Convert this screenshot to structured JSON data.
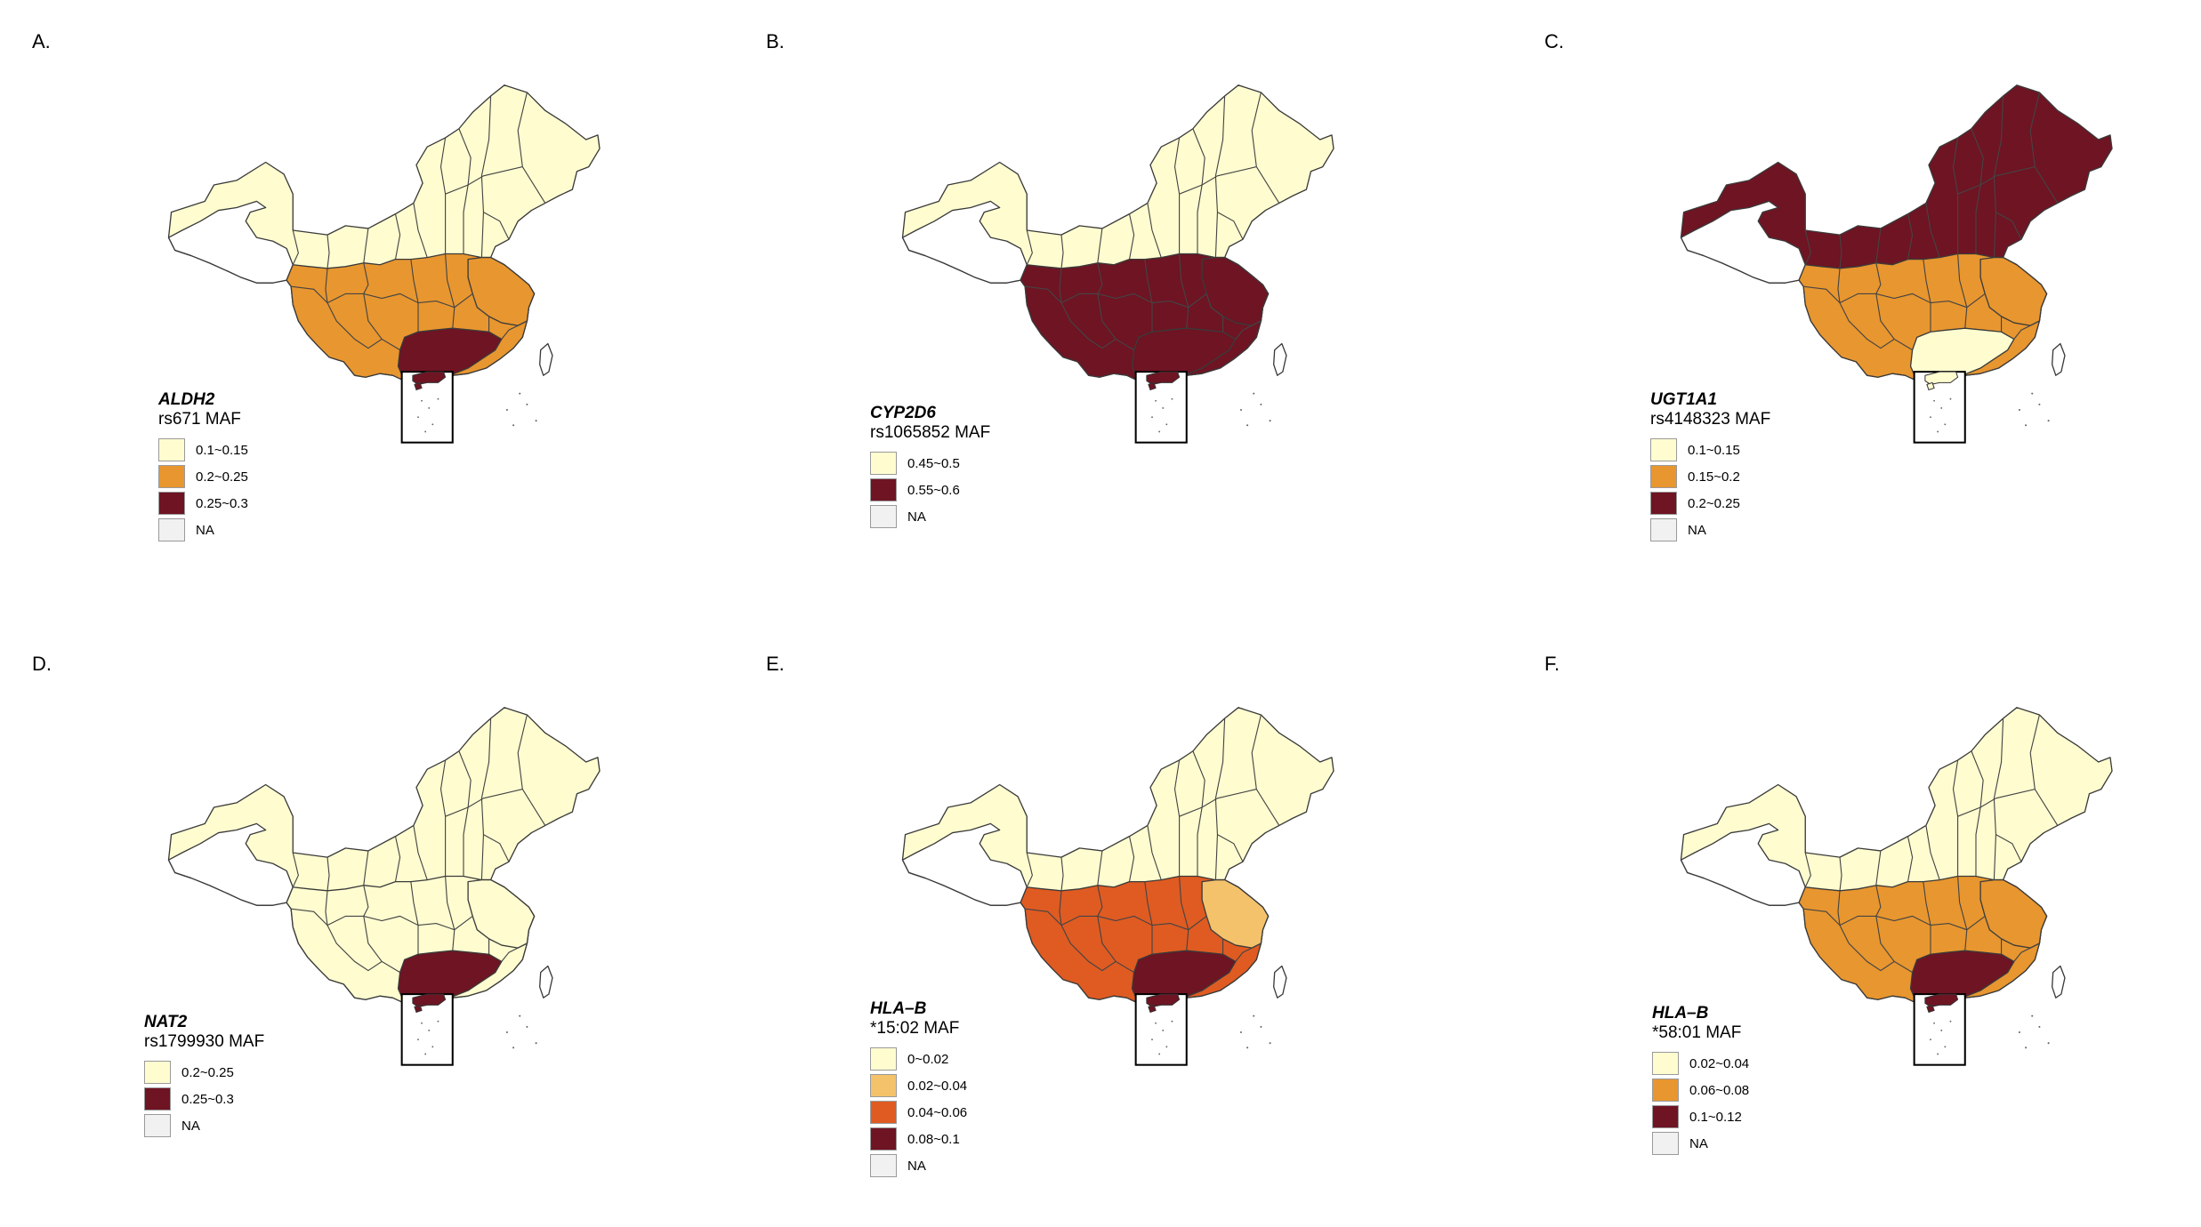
{
  "colors": {
    "c1": "#FFFDD0",
    "c2": "#E8962F",
    "c3": "#6E1423",
    "c_light_orange": "#F4C26B",
    "c_dark_orange": "#DF5B22",
    "na": "#F1F1F1",
    "border": "#3a3a3a"
  },
  "panels": [
    {
      "label": "A.",
      "gene": "ALDH2",
      "snp": "rs671 MAF",
      "legend": [
        {
          "text": "0.1~0.15",
          "color": "#FFFDD0"
        },
        {
          "text": "0.2~0.25",
          "color": "#E8962F"
        },
        {
          "text": "0.25~0.3",
          "color": "#6E1423"
        },
        {
          "text": "NA",
          "color": "#F1F1F1"
        }
      ],
      "regions": {
        "north": "#FFFDD0",
        "tibet": "#FFFFFF",
        "south": "#E8962F",
        "east": "#E8962F",
        "guangdong": "#6E1423",
        "hainan": "#6E1423",
        "taiwan": "#FFFFFF"
      }
    },
    {
      "label": "B.",
      "gene": "CYP2D6",
      "snp": "rs1065852 MAF",
      "legend": [
        {
          "text": "0.45~0.5",
          "color": "#FFFDD0"
        },
        {
          "text": "0.55~0.6",
          "color": "#6E1423"
        },
        {
          "text": "NA",
          "color": "#F1F1F1"
        }
      ],
      "regions": {
        "north": "#FFFDD0",
        "tibet": "#FFFFFF",
        "south": "#6E1423",
        "east": "#6E1423",
        "guangdong": "#6E1423",
        "hainan": "#6E1423",
        "taiwan": "#FFFFFF"
      }
    },
    {
      "label": "C.",
      "gene": "UGT1A1",
      "snp": "rs4148323 MAF",
      "legend": [
        {
          "text": "0.1~0.15",
          "color": "#FFFDD0"
        },
        {
          "text": "0.15~0.2",
          "color": "#E8962F"
        },
        {
          "text": "0.2~0.25",
          "color": "#6E1423"
        },
        {
          "text": "NA",
          "color": "#F1F1F1"
        }
      ],
      "regions": {
        "north": "#6E1423",
        "tibet": "#FFFFFF",
        "south": "#E8962F",
        "east": "#E8962F",
        "guangdong": "#FFFDD0",
        "hainan": "#FFFDD0",
        "taiwan": "#FFFFFF"
      }
    },
    {
      "label": "D.",
      "gene": "NAT2",
      "snp": "rs1799930 MAF",
      "legend": [
        {
          "text": "0.2~0.25",
          "color": "#FFFDD0"
        },
        {
          "text": "0.25~0.3",
          "color": "#6E1423"
        },
        {
          "text": "NA",
          "color": "#F1F1F1"
        }
      ],
      "regions": {
        "north": "#FFFDD0",
        "tibet": "#FFFFFF",
        "south": "#FFFDD0",
        "east": "#FFFDD0",
        "guangdong": "#6E1423",
        "hainan": "#6E1423",
        "taiwan": "#FFFFFF"
      }
    },
    {
      "label": "E.",
      "gene": "HLA–B",
      "snp": "*15:02 MAF",
      "legend": [
        {
          "text": "0~0.02",
          "color": "#FFFDD0"
        },
        {
          "text": "0.02~0.04",
          "color": "#F4C26B"
        },
        {
          "text": "0.04~0.06",
          "color": "#DF5B22"
        },
        {
          "text": "0.08~0.1",
          "color": "#6E1423"
        },
        {
          "text": "NA",
          "color": "#F1F1F1"
        }
      ],
      "regions": {
        "north": "#FFFDD0",
        "tibet": "#FFFFFF",
        "south": "#DF5B22",
        "east": "#F4C26B",
        "guangdong": "#6E1423",
        "hainan": "#6E1423",
        "taiwan": "#FFFFFF"
      }
    },
    {
      "label": "F.",
      "gene": "HLA–B",
      "snp": "*58:01 MAF",
      "legend": [
        {
          "text": "0.02~0.04",
          "color": "#FFFDD0"
        },
        {
          "text": "0.06~0.08",
          "color": "#E8962F"
        },
        {
          "text": "0.1~0.12",
          "color": "#6E1423"
        },
        {
          "text": "NA",
          "color": "#F1F1F1"
        }
      ],
      "regions": {
        "north": "#FFFDD0",
        "tibet": "#FFFFFF",
        "south": "#E8962F",
        "east": "#E8962F",
        "guangdong": "#6E1423",
        "hainan": "#6E1423",
        "taiwan": "#FFFFFF"
      }
    }
  ]
}
